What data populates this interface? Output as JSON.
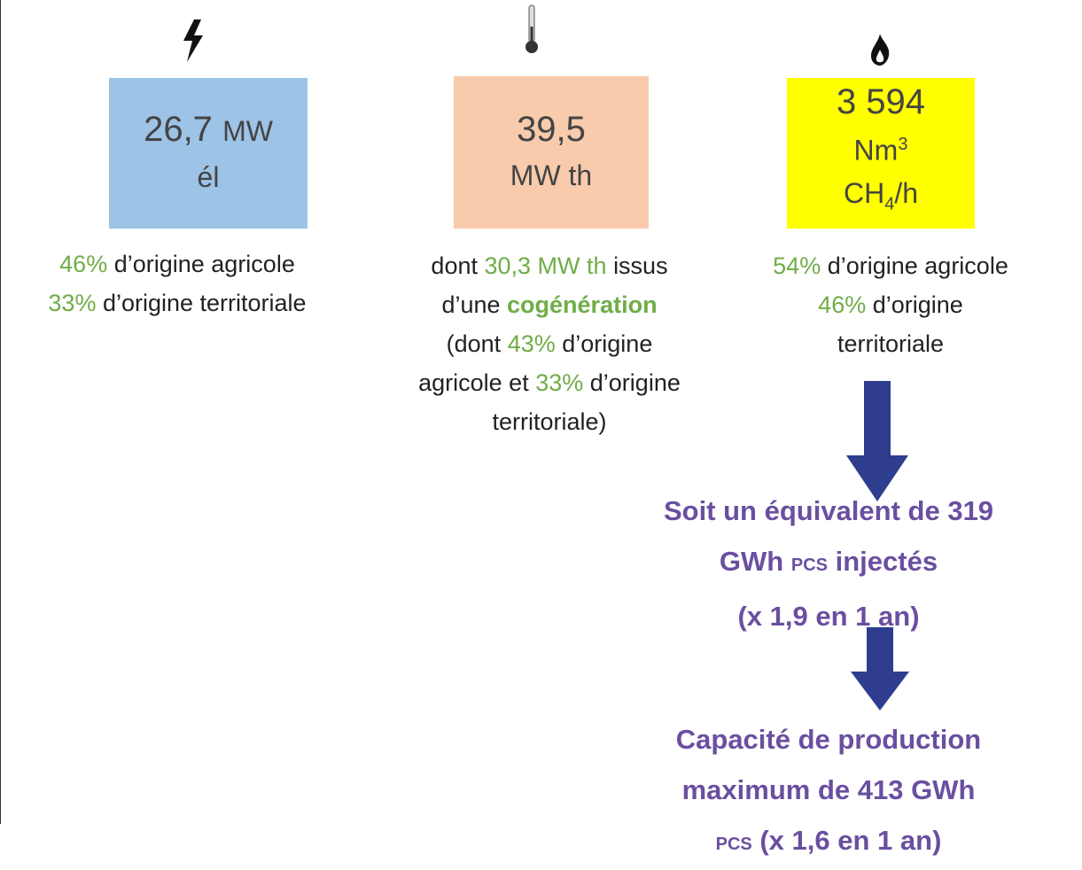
{
  "columns": [
    {
      "box": {
        "value": "26,7",
        "unit": "MW",
        "line2": "él"
      },
      "description": [
        [
          "46%",
          "d’origine agricole"
        ],
        [
          "33%",
          "d’origine territoriale"
        ]
      ]
    },
    {
      "box": {
        "value": "39,5",
        "line2": "MW th"
      },
      "description": [
        [
          "dont",
          "30,3 MW th",
          "issus"
        ],
        [
          "d’une",
          "cogénération"
        ],
        [
          "(dont",
          "43%",
          "d’origine"
        ],
        [
          "agricole et",
          "33%",
          "d’origine"
        ],
        [
          "territoriale)"
        ]
      ]
    },
    {
      "box": {
        "value": "3 594",
        "unit": "Nm",
        "unit_sup": "3",
        "formula": "CH",
        "formula_sub": "4",
        "formula_end": "/h"
      },
      "description": [
        [
          "54%",
          "d’origine agricole"
        ],
        [
          "46%",
          "d’origine"
        ],
        [
          "territoriale"
        ]
      ]
    }
  ],
  "results": [
    [
      [
        "Soit un équivalent de 319"
      ],
      [
        "GWh",
        "PCS",
        "injectés"
      ],
      [
        "(x 1,9 en 1 an)"
      ]
    ],
    [
      [
        "Capacité de production"
      ],
      [
        "maximum de 413 GWh"
      ],
      [
        "PCS",
        "(x 1,6 en 1 an)"
      ]
    ]
  ]
}
